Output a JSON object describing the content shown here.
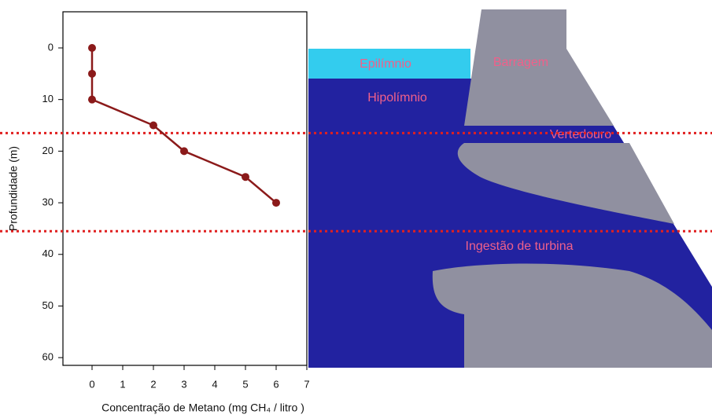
{
  "chart_data": {
    "type": "line",
    "xlabel": "Concentração de Metano (mg CH₄ / litro )",
    "ylabel": "Profundidade (m)",
    "series": [
      {
        "x": [
          0,
          0,
          0,
          2,
          3,
          5,
          6
        ],
        "values": [
          0,
          5,
          10,
          15,
          20,
          25,
          30
        ],
        "color": "#8b1a1a"
      }
    ],
    "xlim": [
      -1,
      7
    ],
    "xticks": [
      0,
      1,
      2,
      3,
      4,
      5,
      6,
      7
    ],
    "ylim": [
      -7,
      61.5
    ],
    "yticks": [
      0,
      10,
      20,
      30,
      40,
      50,
      60
    ],
    "y_inverted": true,
    "reference_lines": [
      16.5,
      35.5
    ],
    "reference_color": "#e02020",
    "annotations": {
      "epilimnio": "Epilímnio",
      "barragem": "Barragem",
      "hipolimnio": "Hipolímnio",
      "vertedouro": "Vertedouro",
      "turbina": "Ingestão de turbina"
    }
  }
}
